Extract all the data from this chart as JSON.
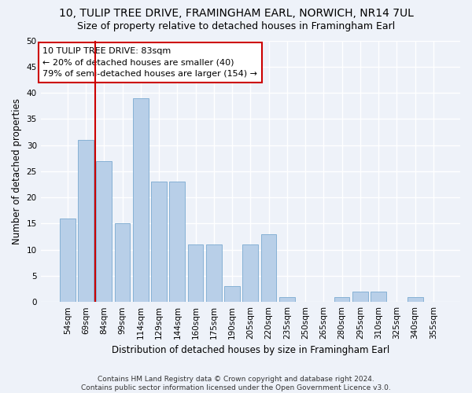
{
  "title": "10, TULIP TREE DRIVE, FRAMINGHAM EARL, NORWICH, NR14 7UL",
  "subtitle": "Size of property relative to detached houses in Framingham Earl",
  "xlabel": "Distribution of detached houses by size in Framingham Earl",
  "ylabel": "Number of detached properties",
  "categories": [
    "54sqm",
    "69sqm",
    "84sqm",
    "99sqm",
    "114sqm",
    "129sqm",
    "144sqm",
    "160sqm",
    "175sqm",
    "190sqm",
    "205sqm",
    "220sqm",
    "235sqm",
    "250sqm",
    "265sqm",
    "280sqm",
    "295sqm",
    "310sqm",
    "325sqm",
    "340sqm",
    "355sqm"
  ],
  "values": [
    16,
    31,
    27,
    15,
    39,
    23,
    23,
    11,
    11,
    3,
    11,
    13,
    1,
    0,
    0,
    1,
    2,
    2,
    0,
    1,
    0
  ],
  "bar_color": "#b8cfe8",
  "bar_edge_color": "#7aaad0",
  "property_line_color": "#cc0000",
  "property_line_index": 1.5,
  "annotation_text": "10 TULIP TREE DRIVE: 83sqm\n← 20% of detached houses are smaller (40)\n79% of semi-detached houses are larger (154) →",
  "annotation_box_color": "#ffffff",
  "annotation_box_edge": "#cc0000",
  "ylim": [
    0,
    50
  ],
  "yticks": [
    0,
    5,
    10,
    15,
    20,
    25,
    30,
    35,
    40,
    45,
    50
  ],
  "footer": "Contains HM Land Registry data © Crown copyright and database right 2024.\nContains public sector information licensed under the Open Government Licence v3.0.",
  "background_color": "#eef2f9",
  "grid_color": "#ffffff",
  "title_fontsize": 10,
  "subtitle_fontsize": 9,
  "xlabel_fontsize": 8.5,
  "ylabel_fontsize": 8.5,
  "tick_fontsize": 7.5,
  "annotation_fontsize": 8,
  "footer_fontsize": 6.5
}
